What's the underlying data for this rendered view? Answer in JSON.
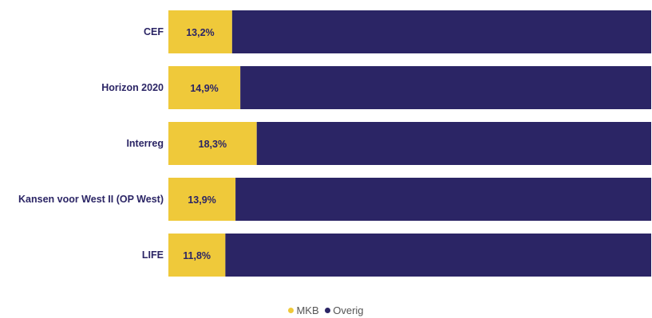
{
  "chart_data": {
    "type": "bar",
    "orientation": "horizontal",
    "stacked": "100%",
    "categories": [
      "CEF",
      "Horizon 2020",
      "Interreg",
      "Kansen voor West II (OP West)",
      "LIFE"
    ],
    "series": [
      {
        "name": "MKB",
        "values": [
          13.2,
          14.9,
          18.3,
          13.9,
          11.8
        ],
        "labels": [
          "13,2%",
          "14,9%",
          "18,3%",
          "13,9%",
          "11,8%"
        ],
        "color": "#efc93a"
      },
      {
        "name": "Overig",
        "values": [
          86.8,
          85.1,
          81.7,
          86.1,
          88.2
        ],
        "color": "#2b2565"
      }
    ],
    "xlim": [
      0,
      100
    ],
    "grid": false,
    "legend_position": "bottom-center"
  }
}
